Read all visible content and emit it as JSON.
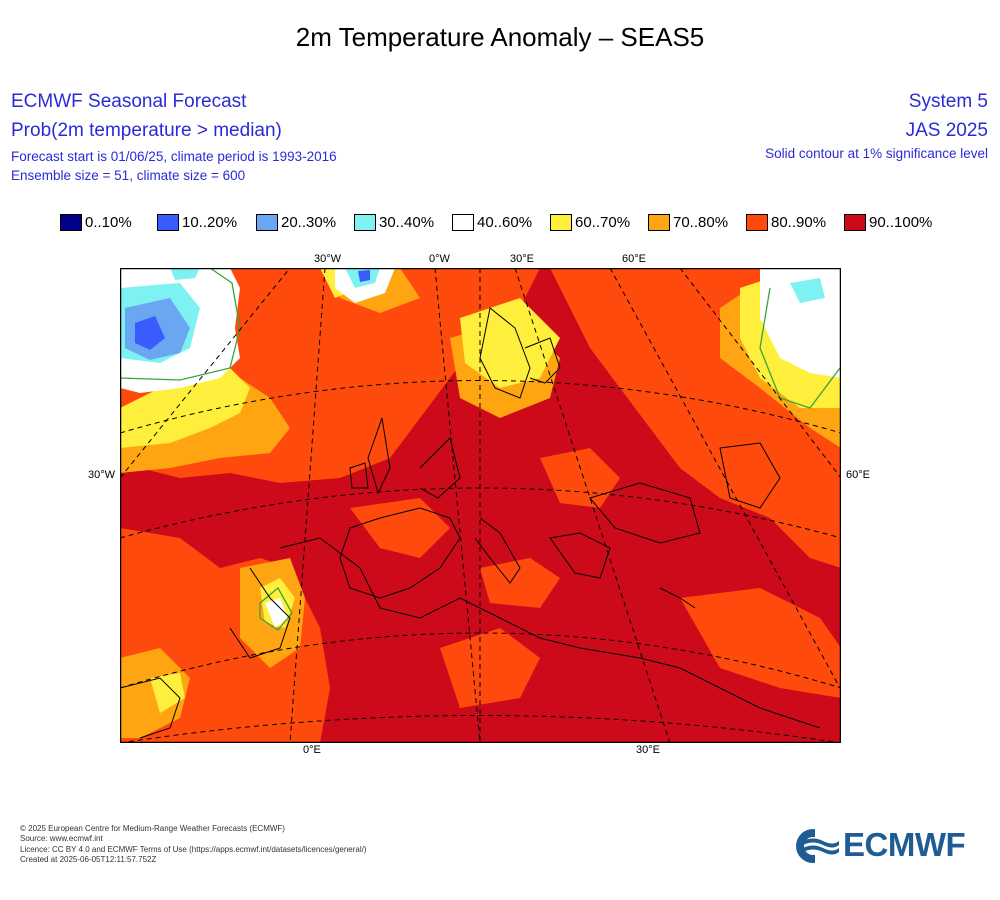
{
  "title": "2m Temperature Anomaly – SEAS5",
  "header": {
    "left": [
      "ECMWF Seasonal Forecast",
      "Prob(2m temperature > median)",
      "Forecast start is 01/06/25, climate period is 1993-2016",
      "Ensemble size = 51, climate size = 600"
    ],
    "right": [
      "System 5",
      "JAS 2025",
      "Solid contour at 1% significance level"
    ]
  },
  "legend": [
    {
      "label": "0..10%",
      "color": "#00008b"
    },
    {
      "label": "10..20%",
      "color": "#3a5cff"
    },
    {
      "label": "20..30%",
      "color": "#6aa6f2"
    },
    {
      "label": "30..40%",
      "color": "#7ef2f2"
    },
    {
      "label": "40..60%",
      "color": "#ffffff"
    },
    {
      "label": "60..70%",
      "color": "#ffef3c"
    },
    {
      "label": "70..80%",
      "color": "#ffa512"
    },
    {
      "label": "80..90%",
      "color": "#ff4a0d"
    },
    {
      "label": "90..100%",
      "color": "#cc0a1a"
    }
  ],
  "map": {
    "top_labels": [
      "30°W",
      "0°W",
      "30°E",
      "60°E"
    ],
    "left_label": "30°W",
    "right_label": "60°E",
    "bottom_labels": [
      "0°E",
      "30°E"
    ]
  },
  "footer": [
    "© 2025 European Centre for Medium-Range Weather Forecasts (ECMWF)",
    "Source: www.ecmwf.int",
    "Licence: CC BY 4.0 and ECMWF Terms of Use (https://apps.ecmwf.int/datasets/licences/general/)",
    "Created at 2025-06-05T12:11:57.752Z"
  ],
  "logo_text": "ECMWF"
}
